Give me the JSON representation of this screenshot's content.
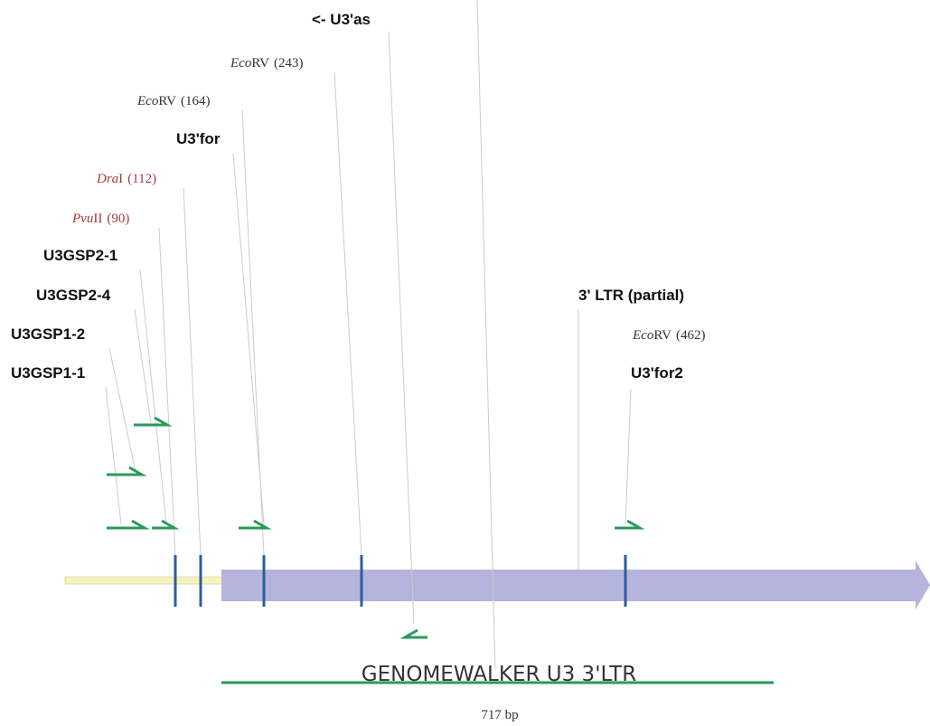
{
  "primers": [
    {
      "label": "U3GSP2-1"
    },
    {
      "label": "U3GSP2-4"
    },
    {
      "label": "U3GSP1-2"
    },
    {
      "label": "U3GSP1-1"
    },
    {
      "label": "U3'for"
    },
    {
      "label": "U3'for2"
    },
    {
      "label": "<- U3'as"
    }
  ],
  "sites": [
    {
      "italic": "Eco",
      "rest": "RV",
      "position": "(243)"
    },
    {
      "italic": "Eco",
      "rest": "RV",
      "position": "(164)"
    },
    {
      "italic": "Dra",
      "rest": "I",
      "position": "(112)"
    },
    {
      "italic": "Pvu",
      "rest": "II",
      "position": "(90)"
    },
    {
      "italic": "Eco",
      "rest": "RV",
      "position": "(462)"
    }
  ],
  "features": {
    "ltr": "3' LTR (partial)",
    "product": "GENOMEWALKER U3 3'LTR",
    "size": "717 bp"
  }
}
